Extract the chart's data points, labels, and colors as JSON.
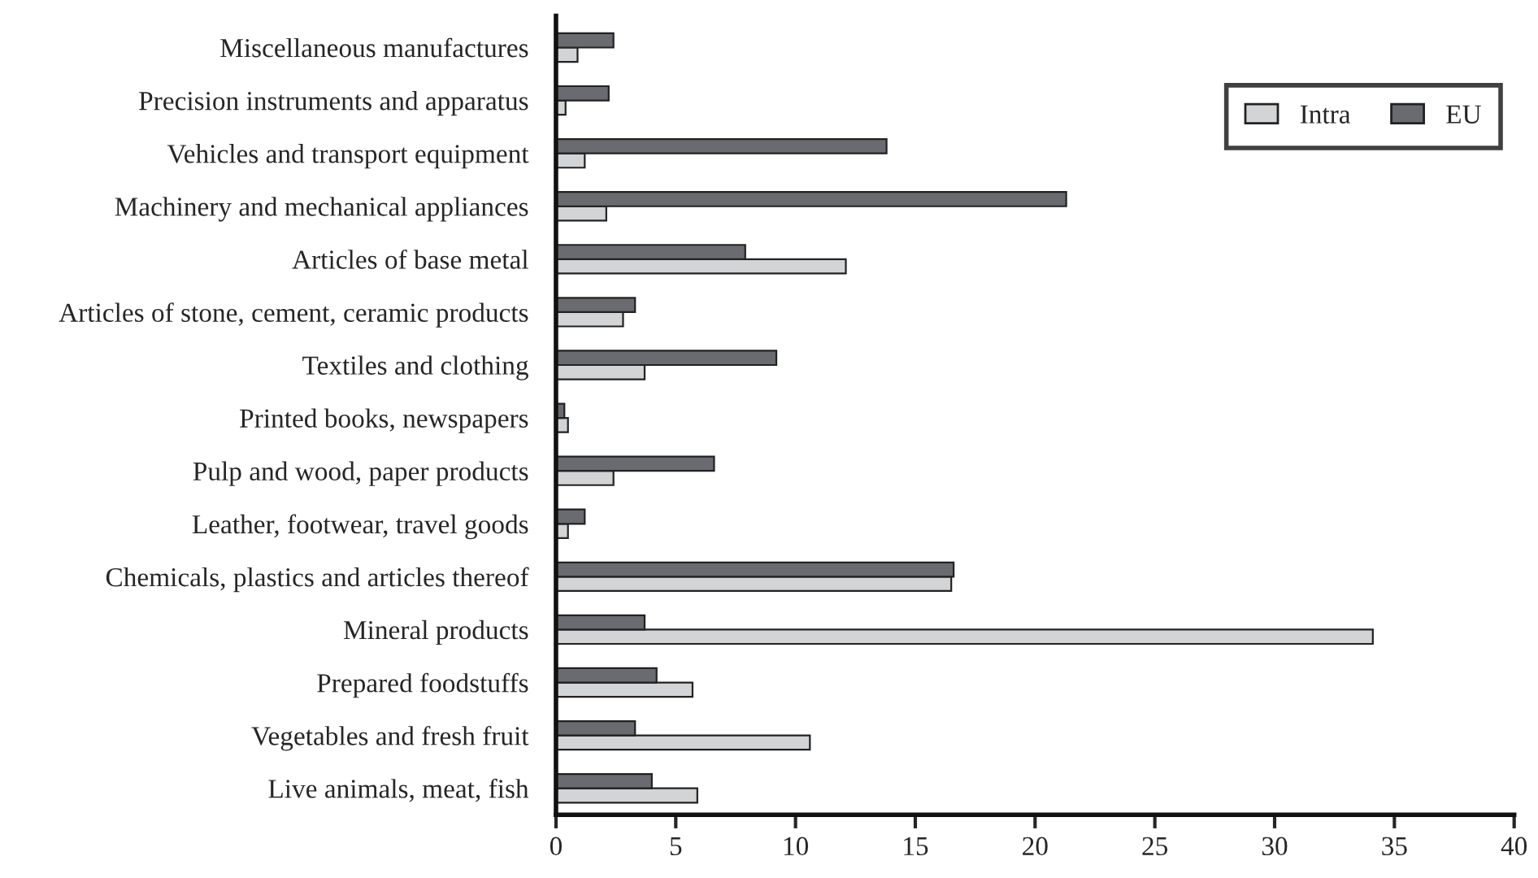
{
  "chart_data": {
    "type": "bar",
    "orientation": "horizontal",
    "categories": [
      "Miscellaneous manufactures",
      "Precision instruments and apparatus",
      "Vehicles and transport equipment",
      "Machinery and mechanical appliances",
      "Articles of base metal",
      "Articles of stone, cement, ceramic products",
      "Textiles and clothing",
      "Printed books, newspapers",
      "Pulp and wood, paper products",
      "Leather, footwear, travel goods",
      "Chemicals, plastics and articles thereof",
      "Mineral products",
      "Prepared foodstuffs",
      "Vegetables and fresh fruit",
      "Live animals, meat, fish"
    ],
    "series": [
      {
        "name": "Intra",
        "color": "#d3d4d6",
        "values": [
          0.9,
          0.4,
          1.2,
          2.1,
          12.1,
          2.8,
          3.7,
          0.5,
          2.4,
          0.5,
          16.5,
          34.1,
          5.7,
          10.6,
          5.9
        ]
      },
      {
        "name": "EU",
        "color": "#6a6b70",
        "values": [
          2.4,
          2.2,
          13.8,
          21.3,
          7.9,
          3.3,
          9.2,
          0.35,
          6.6,
          1.2,
          16.6,
          3.7,
          4.2,
          3.3,
          4.0
        ]
      }
    ],
    "xlim": [
      0,
      40
    ],
    "xticks": [
      0,
      5,
      10,
      15,
      20,
      25,
      30,
      35,
      40
    ],
    "legend": "top right",
    "grid": false
  }
}
